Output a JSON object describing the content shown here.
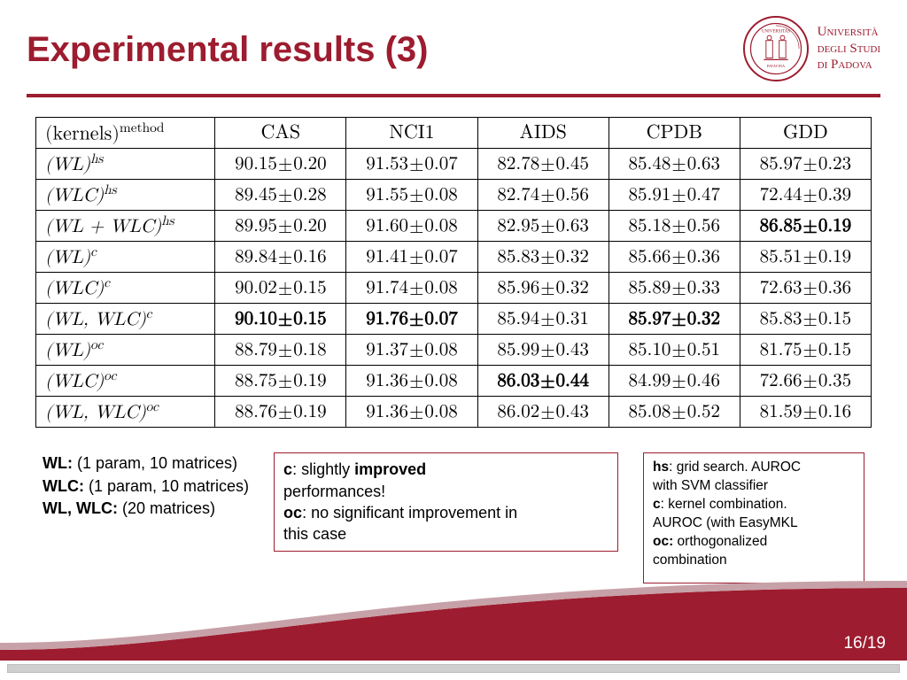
{
  "header": {
    "title": "Experimental results (3)",
    "university_line1": "Università",
    "university_line2": "degli Studi",
    "university_line3": "di Padova"
  },
  "table": {
    "columns": [
      "(kernels)",
      "CAS",
      "NCI1",
      "AIDS",
      "CPDB",
      "GDD"
    ],
    "header_super": "method",
    "groups": [
      {
        "rows": [
          {
            "kernel": "(WL)",
            "sup": "hs",
            "cells": [
              {
                "v": "90.15",
                "e": "0.20"
              },
              {
                "v": "91.53",
                "e": "0.07"
              },
              {
                "v": "82.78",
                "e": "0.45"
              },
              {
                "v": "85.48",
                "e": "0.63"
              },
              {
                "v": "85.97",
                "e": "0.23"
              }
            ]
          },
          {
            "kernel": "(WLC)",
            "sup": "hs",
            "cells": [
              {
                "v": "89.45",
                "e": "0.28"
              },
              {
                "v": "91.55",
                "e": "0.08"
              },
              {
                "v": "82.74",
                "e": "0.56"
              },
              {
                "v": "85.91",
                "e": "0.47"
              },
              {
                "v": "72.44",
                "e": "0.39"
              }
            ]
          },
          {
            "kernel": "(WL + WLC)",
            "sup": "hs",
            "cells": [
              {
                "v": "89.95",
                "e": "0.20"
              },
              {
                "v": "91.60",
                "e": "0.08"
              },
              {
                "v": "82.95",
                "e": "0.63"
              },
              {
                "v": "85.18",
                "e": "0.56"
              },
              {
                "v": "86.85",
                "e": "0.19",
                "bold": true
              }
            ]
          }
        ]
      },
      {
        "rows": [
          {
            "kernel": "(WL)",
            "sup": "c",
            "cells": [
              {
                "v": "89.84",
                "e": "0.16"
              },
              {
                "v": "91.41",
                "e": "0.07"
              },
              {
                "v": "85.83",
                "e": "0.32"
              },
              {
                "v": "85.66",
                "e": "0.36"
              },
              {
                "v": "85.51",
                "e": "0.19"
              }
            ]
          },
          {
            "kernel": "(WLC)",
            "sup": "c",
            "cells": [
              {
                "v": "90.02",
                "e": "0.15"
              },
              {
                "v": "91.74",
                "e": "0.08"
              },
              {
                "v": "85.96",
                "e": "0.32"
              },
              {
                "v": "85.89",
                "e": "0.33"
              },
              {
                "v": "72.63",
                "e": "0.36"
              }
            ]
          },
          {
            "kernel": "(WL, WLC)",
            "sup": "c",
            "cells": [
              {
                "v": "90.10",
                "e": "0.15",
                "bold": true
              },
              {
                "v": "91.76",
                "e": "0.07",
                "bold": true
              },
              {
                "v": "85.94",
                "e": "0.31"
              },
              {
                "v": "85.97",
                "e": "0.32",
                "bold": true
              },
              {
                "v": "85.83",
                "e": "0.15"
              }
            ]
          }
        ]
      },
      {
        "rows": [
          {
            "kernel": "(WL)",
            "sup": "oc",
            "cells": [
              {
                "v": "88.79",
                "e": "0.18"
              },
              {
                "v": "91.37",
                "e": "0.08"
              },
              {
                "v": "85.99",
                "e": "0.43"
              },
              {
                "v": "85.10",
                "e": "0.51"
              },
              {
                "v": "81.75",
                "e": "0.15"
              }
            ]
          },
          {
            "kernel": "(WLC)",
            "sup": "oc",
            "cells": [
              {
                "v": "88.75",
                "e": "0.19"
              },
              {
                "v": "91.36",
                "e": "0.08"
              },
              {
                "v": "86.03",
                "e": "0.44",
                "bold": true
              },
              {
                "v": "84.99",
                "e": "0.46"
              },
              {
                "v": "72.66",
                "e": "0.35"
              }
            ]
          },
          {
            "kernel": "(WL, WLC)",
            "sup": "oc",
            "cells": [
              {
                "v": "88.76",
                "e": "0.19"
              },
              {
                "v": "91.36",
                "e": "0.08"
              },
              {
                "v": "86.02",
                "e": "0.43"
              },
              {
                "v": "85.08",
                "e": "0.52"
              },
              {
                "v": "81.59",
                "e": "0.16"
              }
            ]
          }
        ]
      }
    ]
  },
  "notes": {
    "left": {
      "l1a": "WL:",
      "l1b": " (1 param, 10 matrices)",
      "l2a": "WLC:",
      "l2b": " (1 param, 10 matrices)",
      "l3a": "WL, WLC:",
      "l3b": " (20 matrices)"
    },
    "mid": {
      "l1a": "c",
      "l1b": ": slightly ",
      "l1c": "improved",
      "l2": "performances!",
      "l3a": "oc",
      "l3b": ": no significant improvement in",
      "l4": "this case"
    },
    "right": {
      "l1a": "hs",
      "l1b": ": grid search. AUROC",
      "l2": "with SVM classifier",
      "l3a": "c",
      "l3b": ": kernel combination.",
      "l4": "AUROC (with EasyMKL",
      "l5a": "oc:",
      "l5b": " orthogonalized",
      "l6": "combination"
    }
  },
  "footer": {
    "page": "16/19"
  },
  "colors": {
    "brand": "#9d1c2f"
  }
}
